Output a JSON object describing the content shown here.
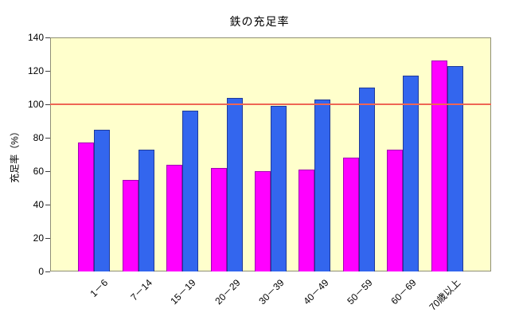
{
  "chart_data": {
    "type": "bar",
    "title": "鉄の充足率",
    "xlabel": "",
    "ylabel": "充足率（%）",
    "categories": [
      "1－6",
      "7－14",
      "15－19",
      "20－29",
      "30－39",
      "40－49",
      "50－59",
      "60－69",
      "70歳以上"
    ],
    "series": [
      {
        "name": "magenta-series",
        "color": "#ff00ff",
        "border_color": "#a000b4",
        "values": [
          77,
          55,
          64,
          62,
          60,
          61,
          68,
          73,
          126
        ]
      },
      {
        "name": "blue-series",
        "color": "#3366ee",
        "border_color": "#1f3a99",
        "values": [
          85,
          73,
          96,
          104,
          99,
          103,
          110,
          117,
          123
        ]
      }
    ],
    "ylim": [
      0,
      140
    ],
    "yticks": [
      0,
      20,
      40,
      60,
      80,
      100,
      120,
      140
    ],
    "reference_line": {
      "value": 100,
      "color": "#ee6655"
    },
    "legend": "none",
    "grid": false,
    "colors": {
      "plot_background": "#ffffcc",
      "outer_background": "#ffffff",
      "plot_border": "#8f8f74",
      "text": "#000000"
    }
  }
}
